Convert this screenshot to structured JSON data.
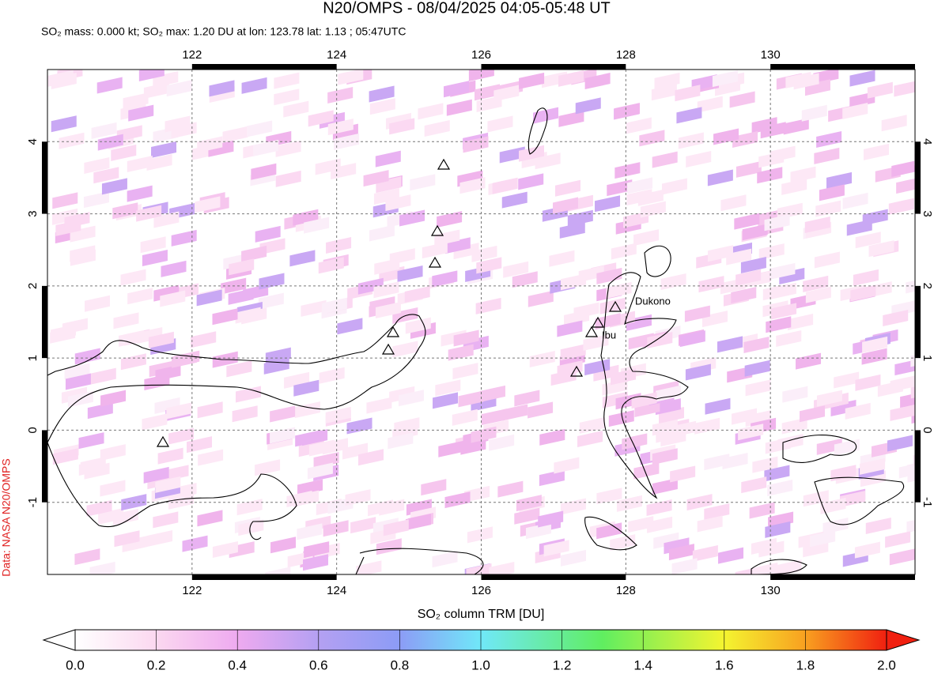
{
  "chart_data": {
    "type": "map",
    "title": "N20/OMPS - 08/04/2025 04:05-05:48 UT",
    "subtitle": "SO₂ mass: 0.000 kt; SO₂ max: 1.20 DU at lon: 123.78 lat: 1.13 ; 05:47UTC",
    "xlim": [
      120,
      132
    ],
    "ylim": [
      -2,
      5
    ],
    "xticks": [
      122,
      124,
      126,
      128,
      130
    ],
    "yticks": [
      -1,
      0,
      1,
      2,
      3,
      4
    ],
    "grid": true,
    "annotations": [
      "Dukono",
      "Ibu"
    ],
    "credit": "Data: NASA N20/OMPS",
    "colorbar": {
      "label": "SO₂ column TRM [DU]",
      "lim": [
        0,
        2
      ],
      "ticks": [
        {
          "value": 0,
          "label": "0.0"
        },
        {
          "value": 0.2,
          "label": "0.2"
        },
        {
          "value": 0.4,
          "label": "0.4"
        },
        {
          "value": 0.6,
          "label": "0.6"
        },
        {
          "value": 0.8,
          "label": "0.8"
        },
        {
          "value": 1,
          "label": "1.0"
        },
        {
          "value": 1.2,
          "label": "1.2"
        },
        {
          "value": 1.4,
          "label": "1.4"
        },
        {
          "value": 1.6,
          "label": "1.6"
        },
        {
          "value": 1.8,
          "label": "1.8"
        },
        {
          "value": 2,
          "label": "2.0"
        }
      ]
    }
  }
}
